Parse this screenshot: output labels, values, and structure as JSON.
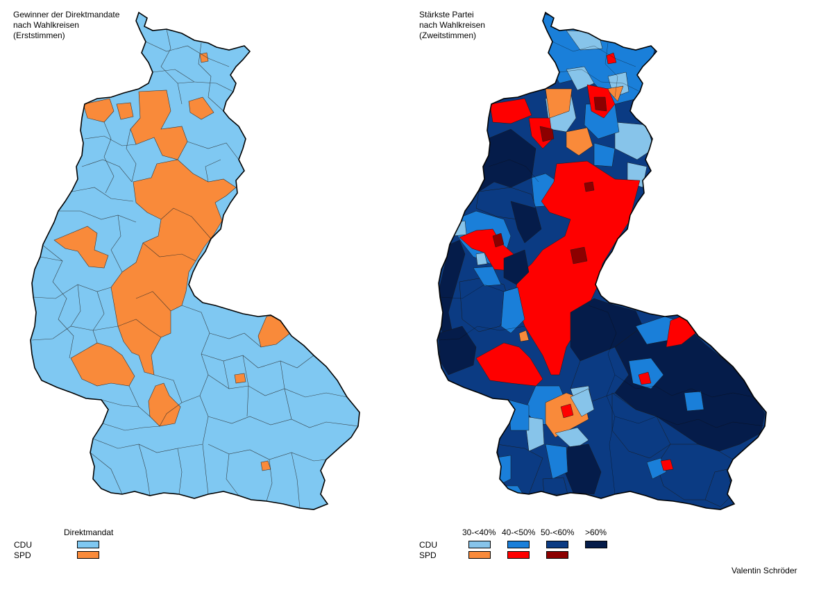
{
  "colors": {
    "cdu_light": "#7fc8f2",
    "spd_orange": "#f98a3a",
    "cdu_30_40": "#87c4ea",
    "cdu_40_50": "#1a7fd9",
    "cdu_50_60": "#0b3b83",
    "cdu_60_plus": "#051c4a",
    "spd_30_40": "#f98a3a",
    "spd_40_50": "#fe0000",
    "spd_50_60": "#8c0000"
  },
  "left_map": {
    "title": "Gewinner der Direktmandate\nnach Wahlkreisen\n(Erststimmen)",
    "legend": {
      "header": "Direktmandat",
      "rows": [
        {
          "party": "CDU",
          "color": "#7fc8f2"
        },
        {
          "party": "SPD",
          "color": "#f98a3a"
        }
      ]
    }
  },
  "right_map": {
    "title": "Stärkste Partei\nnach Wahlkreisen\n(Zweitstimmen)",
    "legend": {
      "columns": [
        "30-<40%",
        "40-<50%",
        "50-<60%",
        ">60%"
      ],
      "rows": [
        {
          "party": "CDU",
          "colors": [
            "#87c4ea",
            "#1a7fd9",
            "#0b3b83",
            "#051c4a"
          ]
        },
        {
          "party": "SPD",
          "colors": [
            "#f98a3a",
            "#fe0000",
            "#8c0000"
          ]
        }
      ]
    }
  },
  "credit": "Valentin Schröder"
}
